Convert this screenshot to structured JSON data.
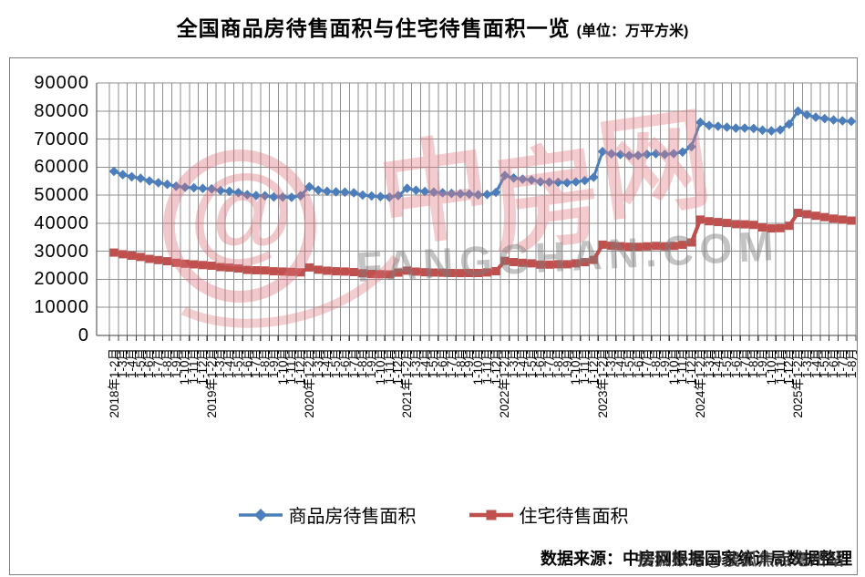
{
  "title": {
    "main": "全国商品房待售面积与住宅待售面积一览",
    "unit": "(单位：万平方米)"
  },
  "source_note": "数据来源：中房网根据国家统计局数据整理",
  "watermark": {
    "logo_glyph": "@",
    "brand_cn": "中房网",
    "brand_en": "FANGCHAN.COM",
    "sohu_badge": "搜狐账号@搜狐焦点亳州站"
  },
  "axes": {
    "yticks": [
      0,
      10000,
      20000,
      30000,
      40000,
      50000,
      60000,
      70000,
      80000,
      90000
    ]
  },
  "colors": {
    "series_commercial": "#4C7EBB",
    "series_residential": "#C0504D",
    "gridline": "#8f8f8f",
    "axis": "#404040"
  },
  "chart_data": {
    "type": "line",
    "title": "全国商品房待售面积与住宅待售面积一览",
    "unit": "万平方米",
    "ylim": [
      0,
      90000
    ],
    "ytick_step": 10000,
    "grid": true,
    "legend_position": "bottom",
    "categories": [
      "2018年1-2月",
      "1-3月",
      "1-4月",
      "1-5月",
      "1-6月",
      "1-7月",
      "1-8月",
      "1-9月",
      "1-10月",
      "1-11月",
      "1-12月",
      "2019年1-2月",
      "1-3月",
      "1-4月",
      "1-5月",
      "1-6月",
      "1-7月",
      "1-8月",
      "1-9月",
      "1-10月",
      "1-11月",
      "1-12月",
      "2020年1-2月",
      "1-3月",
      "1-4月",
      "1-5月",
      "1-6月",
      "1-7月",
      "1-8月",
      "1-9月",
      "1-10月",
      "1-11月",
      "1-12月",
      "2021年1-2月",
      "1-3月",
      "1-4月",
      "1-5月",
      "1-6月",
      "1-7月",
      "1-8月",
      "1-9月",
      "1-10月",
      "1-11月",
      "1-12月",
      "2022年1-2月",
      "1-3月",
      "1-4月",
      "1-5月",
      "1-6月",
      "1-7月",
      "1-8月",
      "1-9月",
      "1-10月",
      "1-11月",
      "1-12月",
      "2023年1-2月",
      "1-3月",
      "1-4月",
      "1-5月",
      "1-6月",
      "1-7月",
      "1-8月",
      "1-9月",
      "1-10月",
      "1-11月",
      "1-12月",
      "2024年1-2月",
      "1-3月",
      "1-4月",
      "1-5月",
      "1-6月",
      "1-7月",
      "1-8月",
      "1-9月",
      "1-10月",
      "1-11月",
      "1-12月",
      "2025年1-2月",
      "1-3月",
      "1-4月",
      "1-5月",
      "1-6月",
      "1-7月",
      "1-8月"
    ],
    "series": [
      {
        "name": "商品房待售面积",
        "color": "#4C7EBB",
        "marker": "diamond",
        "values": [
          58468,
          57329,
          56579,
          56010,
          55083,
          54428,
          53873,
          53191,
          52789,
          52627,
          52414,
          52251,
          51646,
          51380,
          50928,
          50162,
          49876,
          49784,
          49346,
          49323,
          49221,
          49821,
          52996,
          51779,
          51362,
          51184,
          51083,
          50862,
          50052,
          49707,
          49492,
          49287,
          49850,
          52425,
          51751,
          51305,
          51087,
          50846,
          50630,
          50487,
          50385,
          50133,
          50277,
          51023,
          57026,
          56113,
          55735,
          55433,
          54784,
          54655,
          54605,
          54467,
          54734,
          55203,
          56366,
          65528,
          64770,
          64487,
          64120,
          64159,
          64564,
          64795,
          64537,
          64835,
          65385,
          67295,
          75969,
          74833,
          74553,
          74256,
          73894,
          73926,
          73783,
          73176,
          72920,
          73286,
          75327,
          79970,
          78612,
          77789,
          77294,
          76822,
          76504,
          76313
        ]
      },
      {
        "name": "住宅待售面积",
        "color": "#C0504D",
        "marker": "square",
        "values": [
          29539,
          28937,
          28423,
          27987,
          27308,
          26869,
          26442,
          25887,
          25564,
          25349,
          25091,
          24842,
          24382,
          24186,
          23875,
          23370,
          23217,
          23164,
          22883,
          22783,
          22640,
          22473,
          24224,
          23434,
          23069,
          22882,
          22770,
          22577,
          22143,
          21947,
          21842,
          21767,
          22379,
          23106,
          22738,
          22516,
          22423,
          22344,
          22255,
          22230,
          22242,
          22250,
          22463,
          22918,
          26592,
          26147,
          25895,
          25708,
          25249,
          25245,
          25376,
          25389,
          25702,
          26126,
          26947,
          32371,
          31971,
          31797,
          31611,
          31592,
          31745,
          31893,
          31791,
          31917,
          32294,
          33139,
          41300,
          40714,
          40405,
          40081,
          39677,
          39603,
          39411,
          38518,
          38137,
          38252,
          39088,
          43702,
          43214,
          42655,
          42188,
          41642,
          41287,
          40952
        ]
      }
    ]
  }
}
